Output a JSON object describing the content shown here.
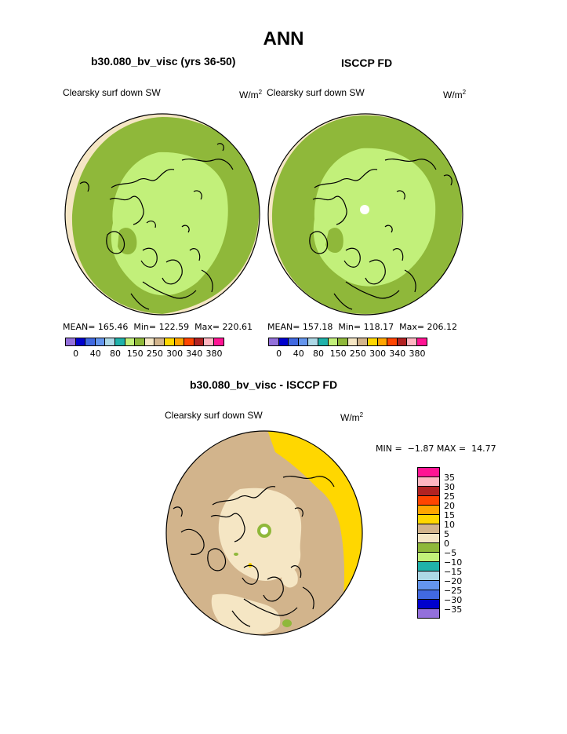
{
  "main_title": "ANN",
  "top_left": {
    "title": "b30.080_bv_visc (yrs 36-50)",
    "var_label": "Clearsky surf down SW",
    "units_base": "W/m",
    "units_sup": "2",
    "stats": "MEAN= 165.46  Min= 122.59  Max= 220.61"
  },
  "top_right": {
    "title": "ISCCP FD",
    "var_label": "Clearsky surf down SW",
    "units_base": "W/m",
    "units_sup": "2",
    "stats": "MEAN= 157.18  Min= 118.17  Max= 206.12"
  },
  "diff": {
    "title": "b30.080_bv_visc - ISCCP FD",
    "var_label": "Clearsky surf down SW",
    "units_base": "W/m",
    "units_sup": "2",
    "stats": "MIN =  −1.87 MAX =  14.77"
  },
  "top_colorbar": {
    "colors": [
      "#9370db",
      "#0000cd",
      "#4169e1",
      "#6495ed",
      "#add8e6",
      "#20b2aa",
      "#c2f07a",
      "#8fb83a",
      "#f5e6c4",
      "#d2b48c",
      "#ffd700",
      "#ffa500",
      "#ff4500",
      "#b22222",
      "#ffb6c1",
      "#ff1493"
    ],
    "tick_labels": [
      "0",
      "40",
      "80",
      "150",
      "250",
      "300",
      "340",
      "380"
    ]
  },
  "diff_colorbar": {
    "colors": [
      "#ff1493",
      "#ffb6c1",
      "#b22222",
      "#ff4500",
      "#ffa500",
      "#ffd700",
      "#d2b48c",
      "#f5e6c4",
      "#8fb83a",
      "#c2f07a",
      "#20b2aa",
      "#add8e6",
      "#6495ed",
      "#4169e1",
      "#0000cd",
      "#9370db"
    ],
    "labels": [
      "35",
      "30",
      "25",
      "20",
      "15",
      "10",
      "5",
      "0",
      "−5",
      "−10",
      "−15",
      "−20",
      "−25",
      "−30",
      "−35"
    ]
  },
  "map_colors": {
    "outer_band": "#f5e6c4",
    "mid_green": "#8fb83a",
    "light_green": "#c2f07a",
    "diff_base": "#d2b48c",
    "diff_light": "#f5e6c4",
    "diff_yellow": "#ffd700"
  }
}
